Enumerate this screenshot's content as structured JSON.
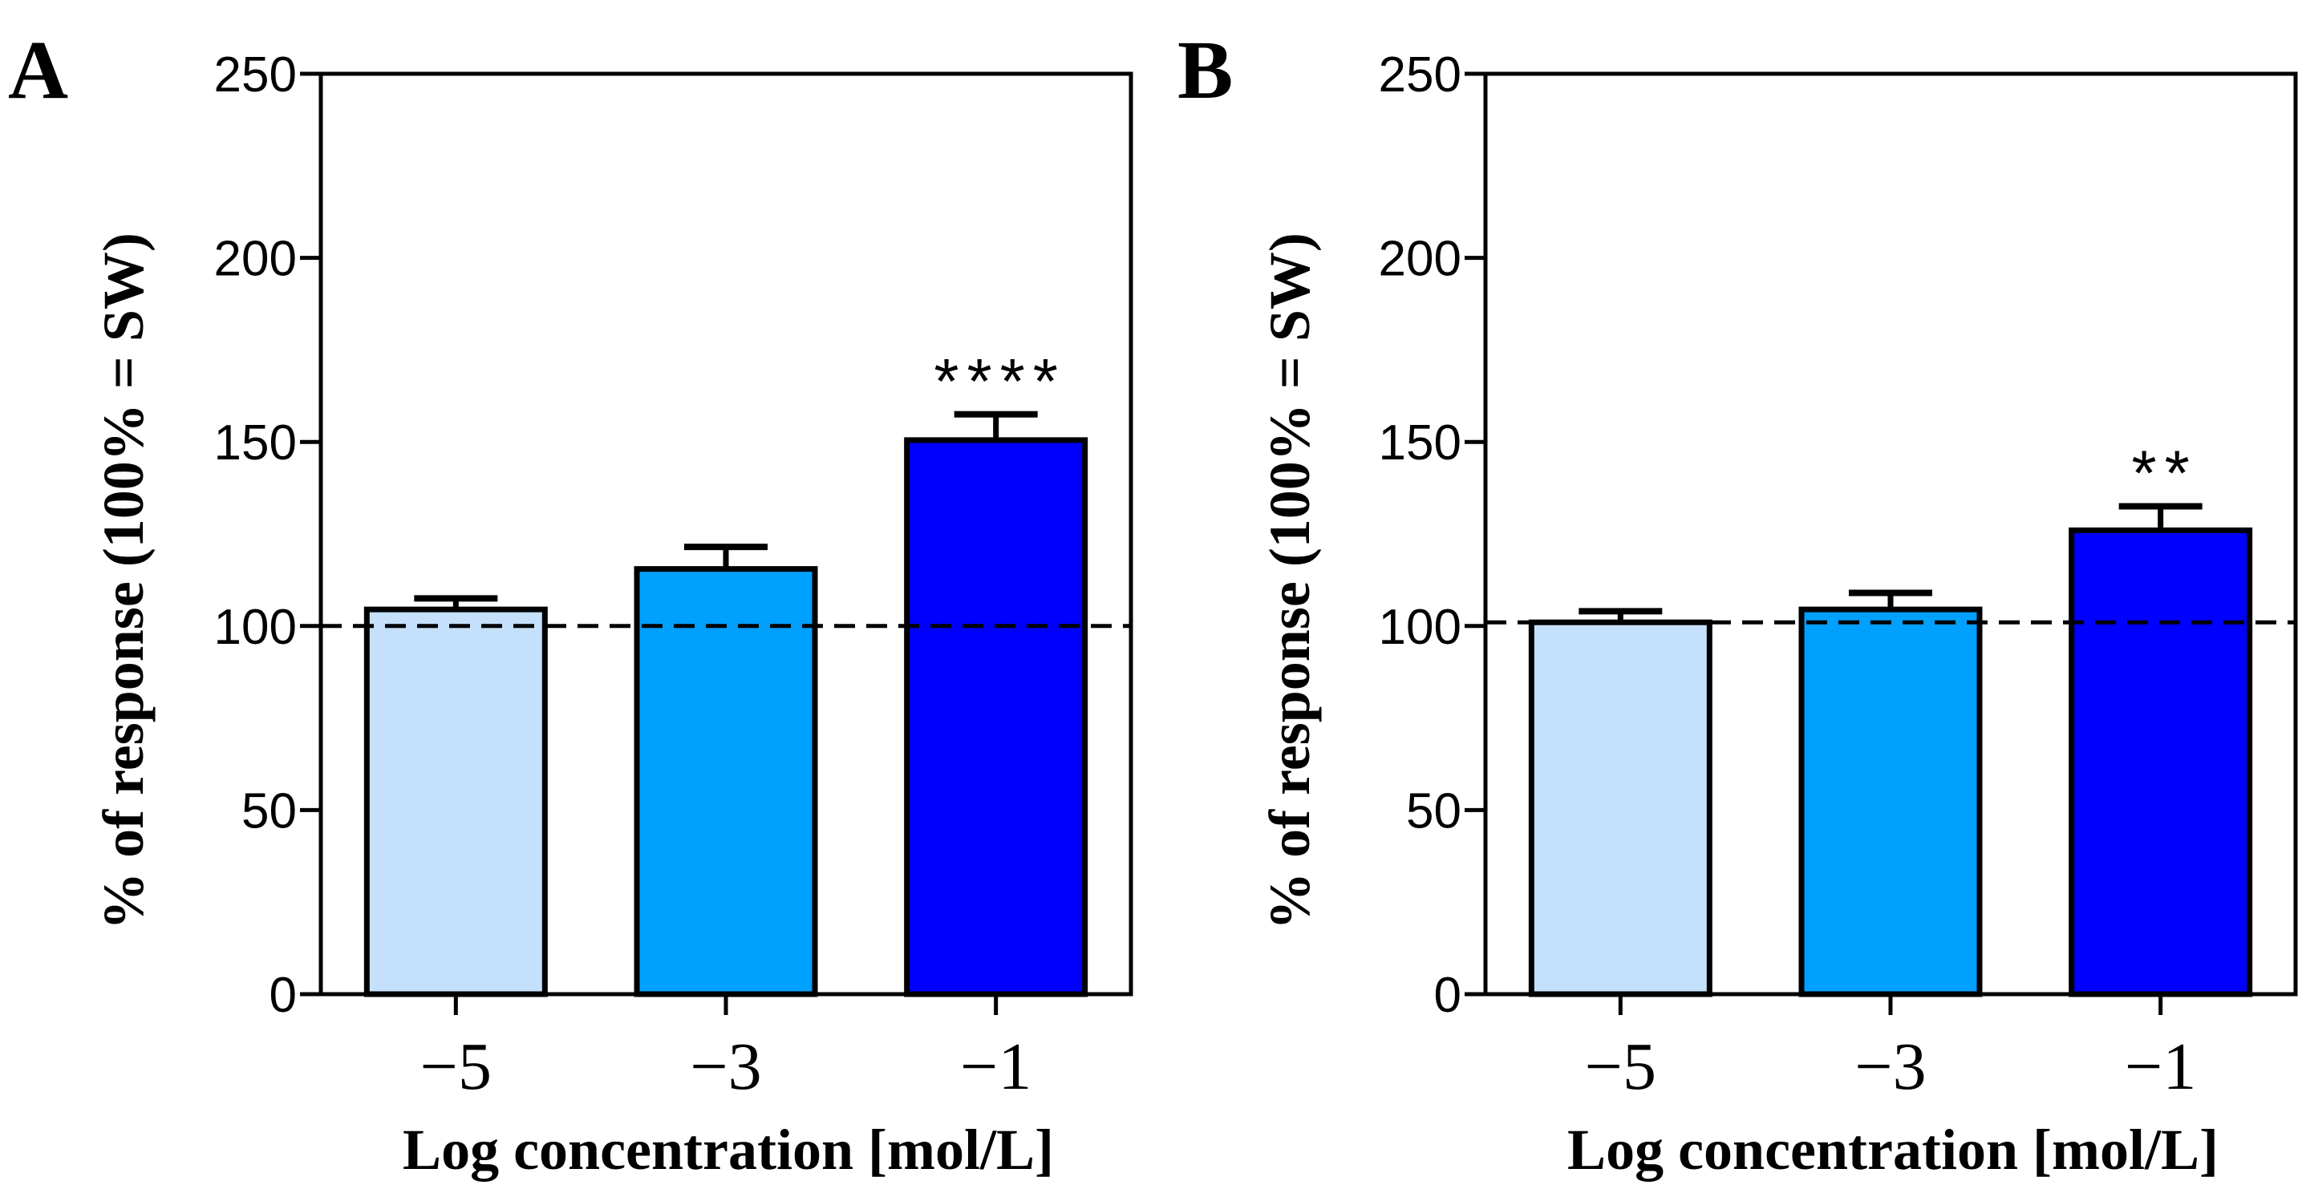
{
  "chart_data": [
    {
      "type": "bar",
      "panel_label": "A",
      "categories": [
        "−5",
        "−3",
        "−1"
      ],
      "values": [
        104.5,
        115.5,
        150.5
      ],
      "errors": [
        3,
        6,
        7
      ],
      "colors": [
        "#c4e0fa",
        "#00a0ff",
        "#0000ff"
      ],
      "annotations": [
        "",
        "",
        "****"
      ],
      "reference_line": 100,
      "xlabel": "Log concentration [mol/L]",
      "ylabel": "% of response (100% = SW)",
      "ylim": [
        0,
        250
      ],
      "yticks": [
        0,
        50,
        100,
        150,
        200,
        250
      ]
    },
    {
      "type": "bar",
      "panel_label": "B",
      "categories": [
        "−5",
        "−3",
        "−1"
      ],
      "values": [
        101,
        104.5,
        126
      ],
      "errors": [
        3,
        4.5,
        6.5
      ],
      "colors": [
        "#c4e0fa",
        "#00a0ff",
        "#0000ff"
      ],
      "annotations": [
        "",
        "",
        "**"
      ],
      "reference_line": 101,
      "xlabel": "Log concentration [mol/L]",
      "ylabel": "% of response (100% = SW)",
      "ylim": [
        0,
        250
      ],
      "yticks": [
        0,
        50,
        100,
        150,
        200,
        250
      ]
    }
  ]
}
